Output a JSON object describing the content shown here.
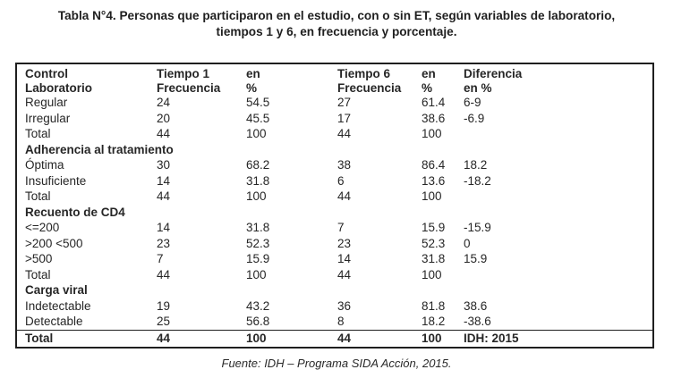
{
  "title": {
    "line1": "Tabla N°4. Personas que participaron en el estudio, con o sin ET, según variables de laboratorio,",
    "line2": "tiempos 1 y 6, en frecuencia y porcentaje."
  },
  "table": {
    "header": {
      "col1_line1": "Control",
      "col1_line2": "Laboratorio",
      "col2_line1": "Tiempo 1",
      "col2_line2": "Frecuencia",
      "col3_line1": "en",
      "col3_line2": "%",
      "col4_line1": "Tiempo 6",
      "col4_line2": "Frecuencia",
      "col5_line1": "en",
      "col5_line2": "%",
      "col6_line1": "Diferencia",
      "col6_line2": "en %"
    },
    "rows": [
      {
        "type": "data",
        "label": "Regular",
        "t1": "24",
        "p1": "54.5",
        "t6": "27",
        "p6": "61.4",
        "diff": "6-9"
      },
      {
        "type": "data",
        "label": "Irregular",
        "t1": "20",
        "p1": "45.5",
        "t6": "17",
        "p6": "38.6",
        "diff": "-6.9"
      },
      {
        "type": "data",
        "label": "Total",
        "t1": "44",
        "p1": "100",
        "t6": "44",
        "p6": "100",
        "diff": ""
      },
      {
        "type": "section",
        "label": "Adherencia al tratamiento"
      },
      {
        "type": "data",
        "label": "Óptima",
        "t1": "30",
        "p1": "68.2",
        "t6": "38",
        "p6": "86.4",
        "diff": "18.2"
      },
      {
        "type": "data",
        "label": "Insuficiente",
        "t1": "14",
        "p1": "31.8",
        "t6": "6",
        "p6": "13.6",
        "diff": "-18.2"
      },
      {
        "type": "data",
        "label": "Total",
        "t1": "44",
        "p1": "100",
        "t6": "44",
        "p6": "100",
        "diff": ""
      },
      {
        "type": "section",
        "label": "Recuento de CD4"
      },
      {
        "type": "data",
        "label": "<=200",
        "t1": "14",
        "p1": "31.8",
        "t6": "7",
        "p6": "15.9",
        "diff": "-15.9"
      },
      {
        "type": "data",
        "label": ">200 <500",
        "t1": "23",
        "p1": "52.3",
        "t6": "23",
        "p6": "52.3",
        "diff": "0"
      },
      {
        "type": "data",
        "label": ">500",
        "t1": "7",
        "p1": "15.9",
        "t6": "14",
        "p6": "31.8",
        "diff": "15.9"
      },
      {
        "type": "data",
        "label": "Total",
        "t1": "44",
        "p1": "100",
        "t6": "44",
        "p6": "100",
        "diff": ""
      },
      {
        "type": "section",
        "label": "Carga viral"
      },
      {
        "type": "data",
        "label": "Indetectable",
        "t1": "19",
        "p1": "43.2",
        "t6": "36",
        "p6": "81.8",
        "diff": "38.6"
      },
      {
        "type": "data",
        "label": "Detectable",
        "t1": "25",
        "p1": "56.8",
        "t6": "8",
        "p6": "18.2",
        "diff": "-38.6"
      },
      {
        "type": "total-bold",
        "label": "Total",
        "t1": "44",
        "p1": "100",
        "t6": "44",
        "p6": "100",
        "diff": "IDH: 2015"
      }
    ]
  },
  "footer": "Fuente: IDH – Programa SIDA Acción, 2015.",
  "colors": {
    "text": "#262626",
    "border": "#1f1f1f",
    "background": "#ffffff"
  }
}
